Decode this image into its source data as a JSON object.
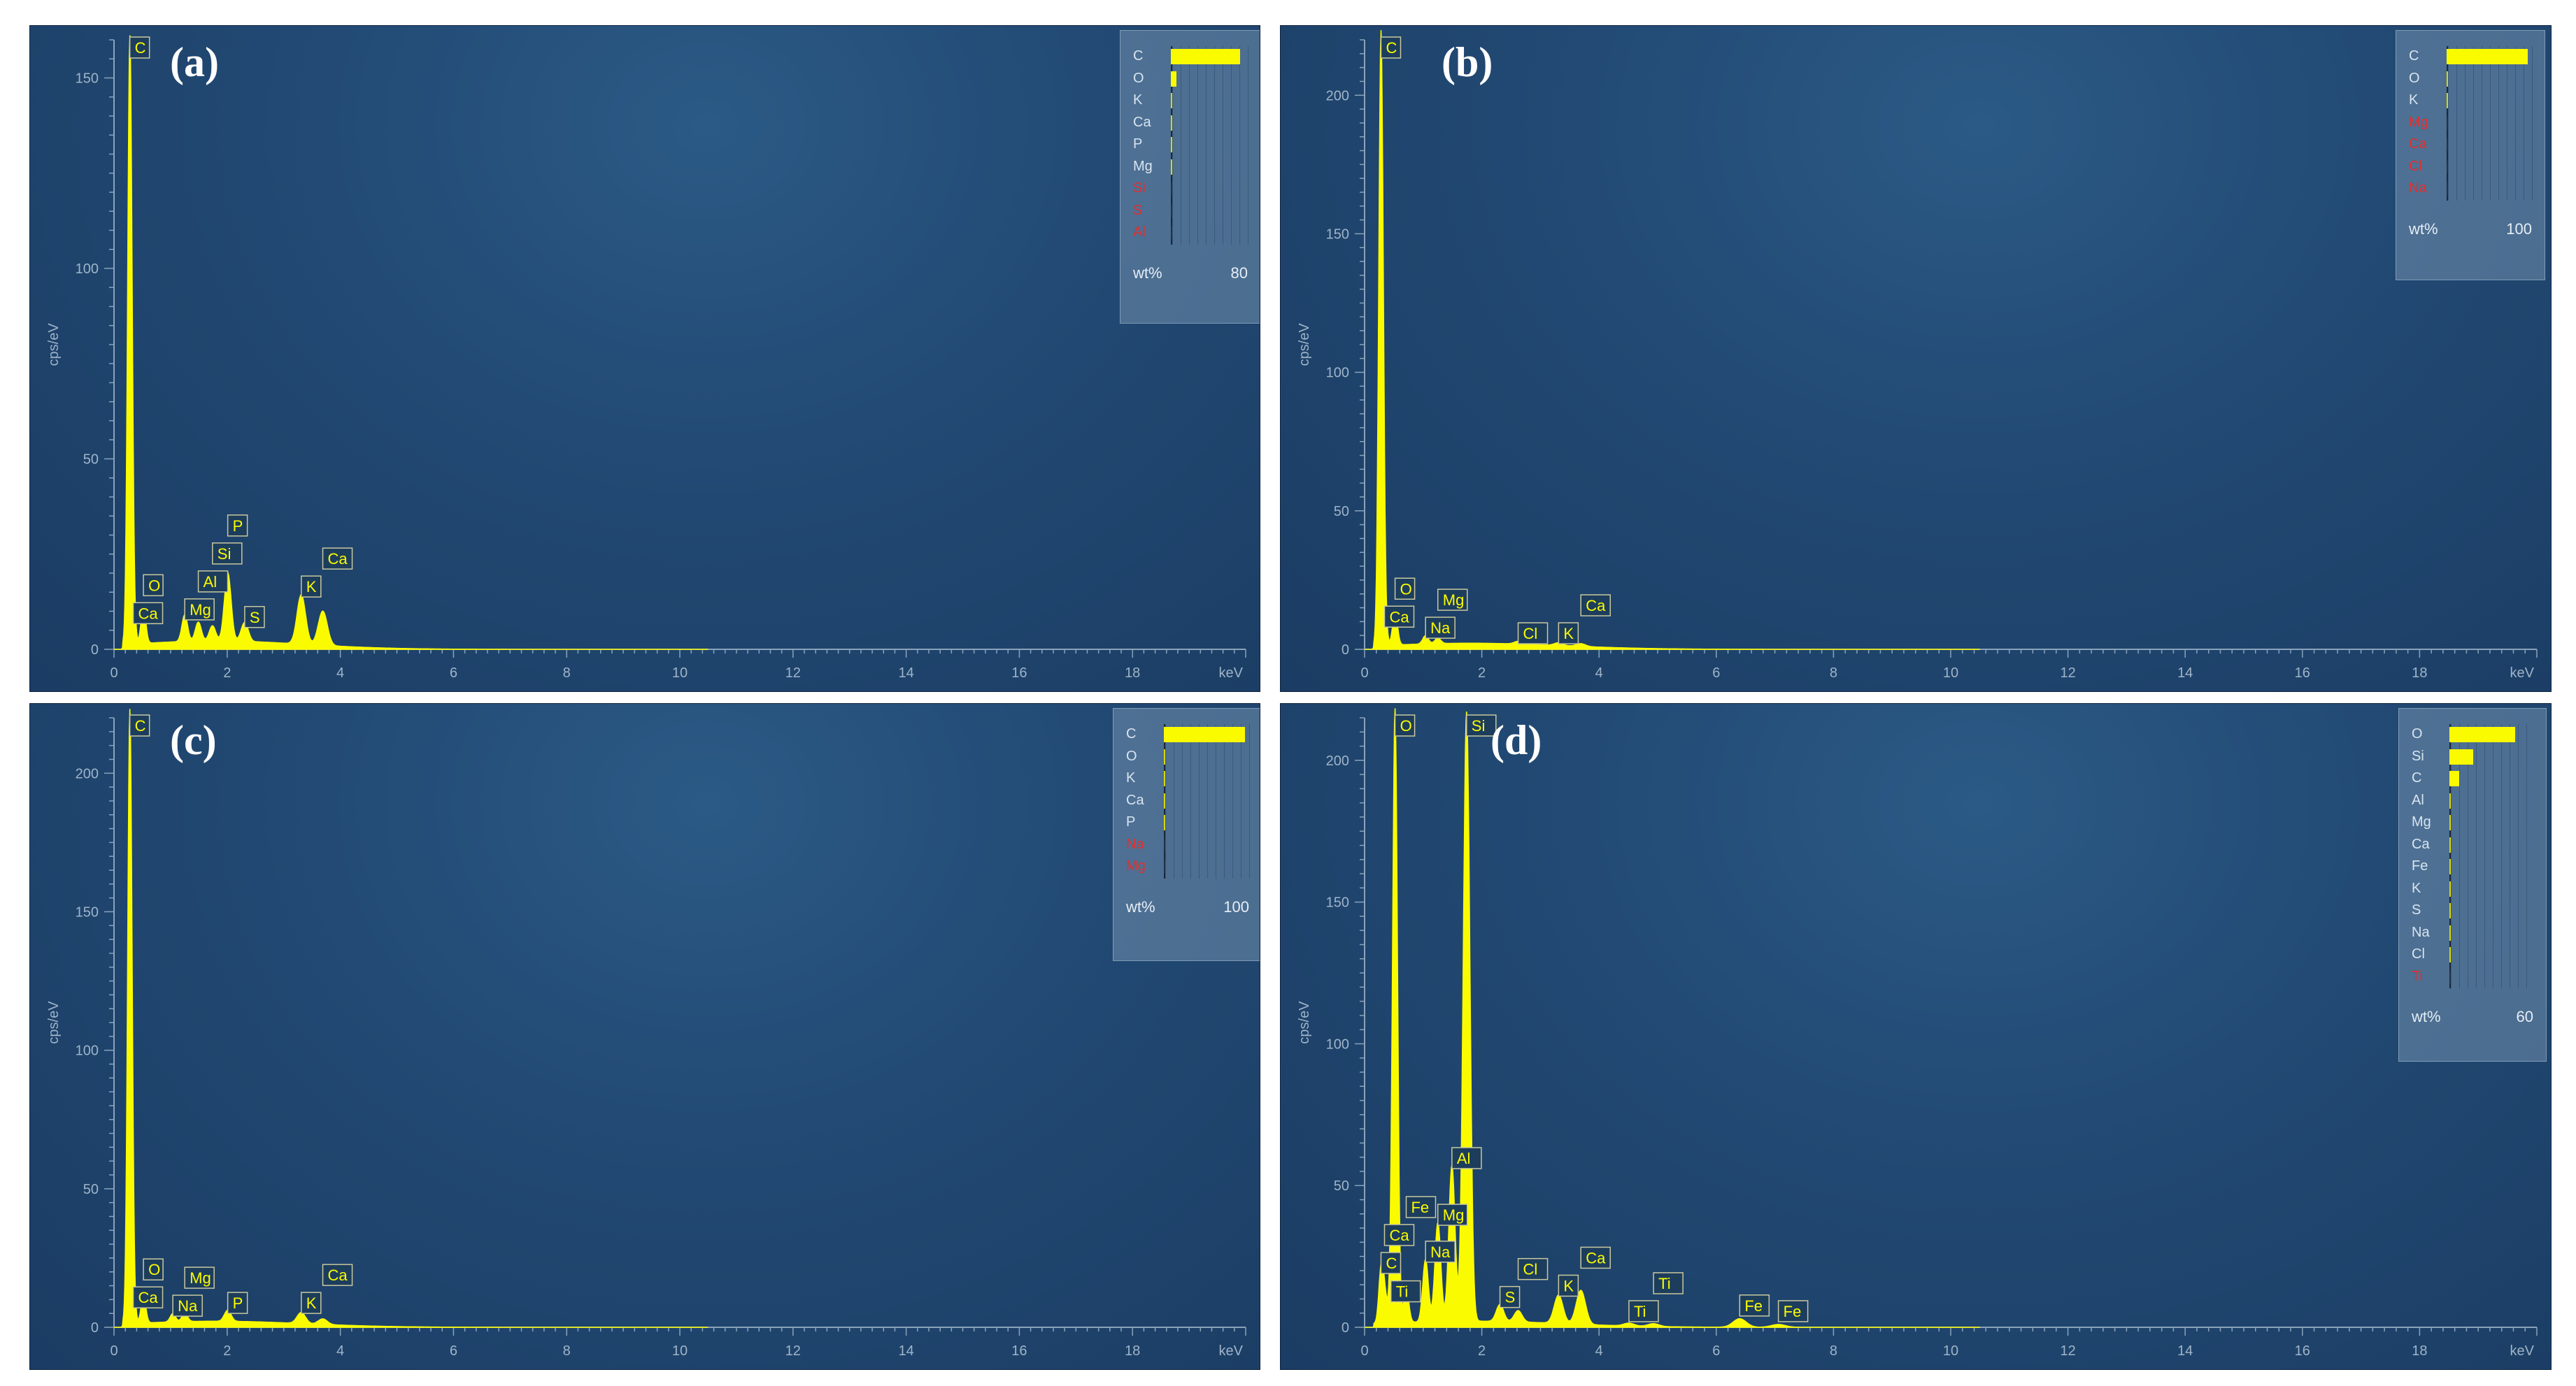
{
  "colors": {
    "spectrum": "#fbfb00",
    "panel_bg": "#1f4670",
    "missing_element": "#e03030"
  },
  "chart_data": [
    {
      "type": "line",
      "panel_label": "(a)",
      "x_unit": "keV",
      "y_unit": "cps/eV",
      "xlim": [
        0,
        20
      ],
      "ylim": [
        0,
        160
      ],
      "xticks": [
        0,
        2,
        4,
        6,
        8,
        10,
        12,
        14,
        16,
        18
      ],
      "yticks": [
        0,
        50,
        100,
        150
      ],
      "peaks": [
        {
          "label": "C",
          "energy": 0.28,
          "cps": 158
        },
        {
          "label": "Ca",
          "energy": 0.34,
          "cps": 6
        },
        {
          "label": "O",
          "energy": 0.52,
          "cps": 10
        },
        {
          "label": "Mg",
          "energy": 1.25,
          "cps": 7
        },
        {
          "label": "Al",
          "energy": 1.49,
          "cps": 5
        },
        {
          "label": "Si",
          "energy": 1.74,
          "cps": 4
        },
        {
          "label": "P",
          "energy": 2.01,
          "cps": 18
        },
        {
          "label": "S",
          "energy": 2.31,
          "cps": 5
        },
        {
          "label": "K",
          "energy": 3.31,
          "cps": 13
        },
        {
          "label": "Ca",
          "energy": 3.69,
          "cps": 9
        }
      ],
      "legend": {
        "elements": [
          {
            "label": "C",
            "wt": 72,
            "detected": true
          },
          {
            "label": "O",
            "wt": 6,
            "detected": true
          },
          {
            "label": "K",
            "wt": 1.2,
            "detected": true
          },
          {
            "label": "Ca",
            "wt": 1,
            "detected": true
          },
          {
            "label": "P",
            "wt": 0.8,
            "detected": true
          },
          {
            "label": "Mg",
            "wt": 0.3,
            "detected": true
          },
          {
            "label": "Si",
            "wt": 0,
            "detected": false
          },
          {
            "label": "S",
            "wt": 0,
            "detected": false
          },
          {
            "label": "Al",
            "wt": 0,
            "detected": false
          }
        ],
        "unit": "wt%",
        "max": "80"
      }
    },
    {
      "type": "line",
      "panel_label": "(b)",
      "x_unit": "keV",
      "y_unit": "cps/eV",
      "xlim": [
        0,
        20
      ],
      "ylim": [
        0,
        220
      ],
      "xticks": [
        0,
        2,
        4,
        6,
        8,
        10,
        12,
        14,
        16,
        18
      ],
      "yticks": [
        0,
        50,
        100,
        150,
        200
      ],
      "peaks": [
        {
          "label": "C",
          "energy": 0.28,
          "cps": 220
        },
        {
          "label": "Ca",
          "energy": 0.34,
          "cps": 7
        },
        {
          "label": "O",
          "energy": 0.52,
          "cps": 12
        },
        {
          "label": "Na",
          "energy": 1.04,
          "cps": 3
        },
        {
          "label": "Mg",
          "energy": 1.25,
          "cps": 2
        },
        {
          "label": "Cl",
          "energy": 2.62,
          "cps": 1
        },
        {
          "label": "K",
          "energy": 3.31,
          "cps": 1
        },
        {
          "label": "Ca",
          "energy": 3.69,
          "cps": 1
        }
      ],
      "legend": {
        "elements": [
          {
            "label": "C",
            "wt": 95,
            "detected": true
          },
          {
            "label": "O",
            "wt": 1.5,
            "detected": true
          },
          {
            "label": "K",
            "wt": 0.5,
            "detected": true
          },
          {
            "label": "Mg",
            "wt": 0,
            "detected": false
          },
          {
            "label": "Ca",
            "wt": 0,
            "detected": false
          },
          {
            "label": "Cl",
            "wt": 0,
            "detected": false
          },
          {
            "label": "Na",
            "wt": 0,
            "detected": false
          }
        ],
        "unit": "wt%",
        "max": "100"
      }
    },
    {
      "type": "line",
      "panel_label": "(c)",
      "x_unit": "keV",
      "y_unit": "cps/eV",
      "xlim": [
        0,
        20
      ],
      "ylim": [
        0,
        220
      ],
      "xticks": [
        0,
        2,
        4,
        6,
        8,
        10,
        12,
        14,
        16,
        18
      ],
      "yticks": [
        0,
        50,
        100,
        150,
        200
      ],
      "peaks": [
        {
          "label": "C",
          "energy": 0.28,
          "cps": 220
        },
        {
          "label": "Ca",
          "energy": 0.34,
          "cps": 6
        },
        {
          "label": "O",
          "energy": 0.52,
          "cps": 10
        },
        {
          "label": "Na",
          "energy": 1.04,
          "cps": 3
        },
        {
          "label": "Mg",
          "energy": 1.25,
          "cps": 3
        },
        {
          "label": "P",
          "energy": 2.01,
          "cps": 4
        },
        {
          "label": "K",
          "energy": 3.31,
          "cps": 4
        },
        {
          "label": "Ca",
          "energy": 3.69,
          "cps": 2
        }
      ],
      "legend": {
        "elements": [
          {
            "label": "C",
            "wt": 95,
            "detected": true
          },
          {
            "label": "O",
            "wt": 1.2,
            "detected": true
          },
          {
            "label": "K",
            "wt": 0.6,
            "detected": true
          },
          {
            "label": "Ca",
            "wt": 0.5,
            "detected": true
          },
          {
            "label": "P",
            "wt": 0.4,
            "detected": true
          },
          {
            "label": "Na",
            "wt": 0,
            "detected": false
          },
          {
            "label": "Mg",
            "wt": 0,
            "detected": false
          }
        ],
        "unit": "wt%",
        "max": "100"
      }
    },
    {
      "type": "line",
      "panel_label": "(d)",
      "x_unit": "keV",
      "y_unit": "cps/eV",
      "xlim": [
        0,
        20
      ],
      "ylim": [
        0,
        215
      ],
      "xticks": [
        0,
        2,
        4,
        6,
        8,
        10,
        12,
        14,
        16,
        18
      ],
      "yticks": [
        0,
        50,
        100,
        150,
        200
      ],
      "peaks": [
        {
          "label": "C",
          "energy": 0.28,
          "cps": 18
        },
        {
          "label": "Ca",
          "energy": 0.34,
          "cps": 10
        },
        {
          "label": "O",
          "energy": 0.52,
          "cps": 215
        },
        {
          "label": "Ti",
          "energy": 0.45,
          "cps": 8
        },
        {
          "label": "Fe",
          "energy": 0.71,
          "cps": 12
        },
        {
          "label": "Na",
          "energy": 1.04,
          "cps": 22
        },
        {
          "label": "Mg",
          "energy": 1.25,
          "cps": 35
        },
        {
          "label": "Al",
          "energy": 1.49,
          "cps": 55
        },
        {
          "label": "Si",
          "energy": 1.74,
          "cps": 215
        },
        {
          "label": "S",
          "energy": 2.31,
          "cps": 6
        },
        {
          "label": "Cl",
          "energy": 2.62,
          "cps": 4
        },
        {
          "label": "K",
          "energy": 3.31,
          "cps": 10
        },
        {
          "label": "Ca",
          "energy": 3.69,
          "cps": 12
        },
        {
          "label": "Ti",
          "energy": 4.51,
          "cps": 1
        },
        {
          "label": "Ti",
          "energy": 4.93,
          "cps": 1
        },
        {
          "label": "Fe",
          "energy": 6.4,
          "cps": 3
        },
        {
          "label": "Fe",
          "energy": 7.06,
          "cps": 1
        }
      ],
      "legend": {
        "elements": [
          {
            "label": "O",
            "wt": 47,
            "detected": true
          },
          {
            "label": "Si",
            "wt": 17,
            "detected": true
          },
          {
            "label": "C",
            "wt": 7,
            "detected": true
          },
          {
            "label": "Al",
            "wt": 3,
            "detected": true
          },
          {
            "label": "Mg",
            "wt": 2,
            "detected": true
          },
          {
            "label": "Ca",
            "wt": 1.5,
            "detected": true
          },
          {
            "label": "Fe",
            "wt": 1.2,
            "detected": true
          },
          {
            "label": "K",
            "wt": 1,
            "detected": true
          },
          {
            "label": "S",
            "wt": 0.5,
            "detected": true
          },
          {
            "label": "Na",
            "wt": 0.5,
            "detected": true
          },
          {
            "label": "Cl",
            "wt": 0.3,
            "detected": true
          },
          {
            "label": "Ti",
            "wt": 0,
            "detected": false
          }
        ],
        "unit": "wt%",
        "max": "60"
      }
    }
  ]
}
